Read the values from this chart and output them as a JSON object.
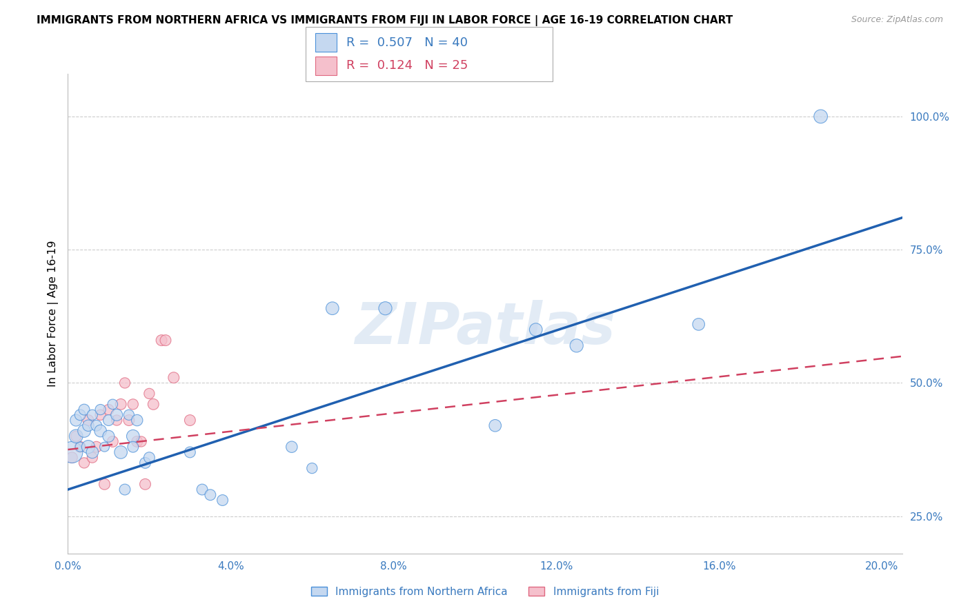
{
  "title": "IMMIGRANTS FROM NORTHERN AFRICA VS IMMIGRANTS FROM FIJI IN LABOR FORCE | AGE 16-19 CORRELATION CHART",
  "source": "Source: ZipAtlas.com",
  "ylabel": "In Labor Force | Age 16-19",
  "watermark": "ZIPatlas",
  "legend1_label": "Immigrants from Northern Africa",
  "legend2_label": "Immigrants from Fiji",
  "R1": 0.507,
  "N1": 40,
  "R2": 0.124,
  "N2": 25,
  "color1_fill": "#c5d8f0",
  "color1_edge": "#4a90d9",
  "color2_fill": "#f5c0cc",
  "color2_edge": "#e06880",
  "color1_line": "#2060b0",
  "color2_line": "#d04060",
  "xlim": [
    0.0,
    0.205
  ],
  "ylim": [
    0.18,
    1.08
  ],
  "xtick_vals": [
    0.0,
    0.04,
    0.08,
    0.12,
    0.16,
    0.2
  ],
  "ytick_vals": [
    0.25,
    0.5,
    0.75,
    1.0
  ],
  "blue_x": [
    0.001,
    0.002,
    0.002,
    0.003,
    0.003,
    0.004,
    0.004,
    0.005,
    0.005,
    0.006,
    0.006,
    0.007,
    0.008,
    0.008,
    0.009,
    0.01,
    0.01,
    0.011,
    0.012,
    0.013,
    0.014,
    0.015,
    0.016,
    0.016,
    0.017,
    0.019,
    0.02,
    0.03,
    0.033,
    0.035,
    0.038,
    0.055,
    0.06,
    0.065,
    0.078,
    0.105,
    0.115,
    0.125,
    0.155,
    0.185
  ],
  "blue_y": [
    0.37,
    0.4,
    0.43,
    0.44,
    0.38,
    0.41,
    0.45,
    0.38,
    0.42,
    0.37,
    0.44,
    0.42,
    0.41,
    0.45,
    0.38,
    0.4,
    0.43,
    0.46,
    0.44,
    0.37,
    0.3,
    0.44,
    0.4,
    0.38,
    0.43,
    0.35,
    0.36,
    0.37,
    0.3,
    0.29,
    0.28,
    0.38,
    0.34,
    0.64,
    0.64,
    0.42,
    0.6,
    0.57,
    0.61,
    1.0
  ],
  "blue_sizes": [
    500,
    200,
    150,
    130,
    100,
    180,
    130,
    190,
    140,
    160,
    120,
    130,
    160,
    120,
    100,
    150,
    130,
    110,
    150,
    180,
    130,
    120,
    180,
    130,
    140,
    130,
    130,
    130,
    130,
    130,
    130,
    140,
    120,
    180,
    190,
    160,
    180,
    190,
    160,
    200
  ],
  "pink_x": [
    0.001,
    0.002,
    0.003,
    0.004,
    0.005,
    0.006,
    0.007,
    0.008,
    0.009,
    0.01,
    0.011,
    0.012,
    0.013,
    0.014,
    0.015,
    0.016,
    0.017,
    0.018,
    0.019,
    0.02,
    0.021,
    0.023,
    0.024,
    0.026,
    0.03
  ],
  "pink_y": [
    0.36,
    0.4,
    0.38,
    0.35,
    0.43,
    0.36,
    0.38,
    0.44,
    0.31,
    0.45,
    0.39,
    0.43,
    0.46,
    0.5,
    0.43,
    0.46,
    0.39,
    0.39,
    0.31,
    0.48,
    0.46,
    0.58,
    0.58,
    0.51,
    0.43
  ],
  "pink_sizes": [
    130,
    120,
    130,
    120,
    130,
    120,
    130,
    120,
    130,
    120,
    130,
    120,
    130,
    120,
    130,
    120,
    130,
    120,
    130,
    120,
    130,
    130,
    130,
    130,
    130
  ],
  "blue_line_x0": 0.0,
  "blue_line_y0": 0.3,
  "blue_line_x1": 0.205,
  "blue_line_y1": 0.81,
  "pink_line_x0": 0.0,
  "pink_line_y0": 0.375,
  "pink_line_x1": 0.205,
  "pink_line_y1": 0.55
}
